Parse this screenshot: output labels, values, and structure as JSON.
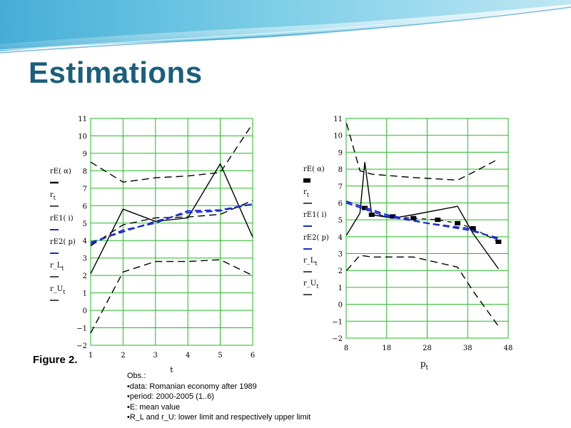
{
  "slide": {
    "title": "Estimations",
    "figure_caption": "Figure 2.",
    "notes": [
      "Obs.:",
      "•data: Romanian economy after 1989",
      "•period: 2000-2005 (1..6)",
      "•E: mean value",
      "•R_L and r_U: lower limit and respectively upper limit"
    ]
  },
  "colors": {
    "title": "#1b5e7e",
    "grid": "#22bb22",
    "black_series": "#000000",
    "blue_series": "#1a2ad0"
  },
  "chart_data": [
    {
      "type": "line",
      "xlabel": "t",
      "ylabel": "",
      "xlim": [
        1,
        6
      ],
      "ylim": [
        -2,
        11
      ],
      "xticks": [
        "1",
        "2",
        "3",
        "4",
        "5",
        "6"
      ],
      "yticks": [
        "−2",
        "−1",
        "0",
        "1",
        "2",
        "3",
        "4",
        "5",
        "6",
        "7",
        "8",
        "9",
        "10",
        "11"
      ],
      "grid": true,
      "legend": "left",
      "series": [
        {
          "name": "rE( α)",
          "style": "dashed",
          "color": "#000000",
          "x": [
            1,
            2,
            3,
            4,
            5,
            6
          ],
          "y": [
            3.7,
            4.9,
            5.3,
            5.35,
            5.5,
            6.3
          ]
        },
        {
          "name": "rt",
          "style": "solid",
          "color": "#000000",
          "x": [
            1,
            2,
            3,
            4,
            5,
            6
          ],
          "y": [
            2.1,
            5.8,
            5.1,
            5.3,
            8.4,
            4.2
          ]
        },
        {
          "name": "rE1( i)",
          "style": "dashed",
          "color": "#1a2ad0",
          "x": [
            1,
            2,
            3,
            4,
            5,
            6
          ],
          "y": [
            3.9,
            4.5,
            5.1,
            5.6,
            5.7,
            6.1
          ]
        },
        {
          "name": "rE2( p)",
          "style": "dashed",
          "color": "#1a2ad0",
          "x": [
            1,
            2,
            3,
            4,
            5,
            6
          ],
          "y": [
            3.8,
            4.6,
            5.0,
            5.7,
            5.75,
            6.1
          ]
        },
        {
          "name": "r_Lt",
          "style": "dashed",
          "color": "#000000",
          "x": [
            1,
            2,
            3,
            4,
            5,
            6
          ],
          "y": [
            -1.3,
            2.2,
            2.8,
            2.8,
            2.9,
            2.0
          ]
        },
        {
          "name": "r_Ut",
          "style": "dashed",
          "color": "#000000",
          "x": [
            1,
            2,
            3,
            4,
            5,
            6
          ],
          "y": [
            8.5,
            7.35,
            7.6,
            7.7,
            7.9,
            10.7
          ]
        }
      ]
    },
    {
      "type": "line",
      "xlabel": "pt",
      "ylabel": "",
      "xlim": [
        8,
        48
      ],
      "ylim": [
        -2,
        11
      ],
      "xticks": [
        "8",
        "18",
        "28",
        "38",
        "48"
      ],
      "yticks": [
        "−2",
        "−1",
        "0",
        "1",
        "2",
        "3",
        "4",
        "5",
        "6",
        "7",
        "8",
        "9",
        "10",
        "11"
      ],
      "grid": true,
      "legend": "left",
      "series": [
        {
          "name": "rE( α)",
          "style": "dashed-thick",
          "color": "#000000",
          "x": [
            12.6,
            14.3,
            19.5,
            24.6,
            30.6,
            35.5,
            39.3,
            45.6
          ],
          "y": [
            5.7,
            5.3,
            5.2,
            5.1,
            5.0,
            4.8,
            4.5,
            3.7
          ]
        },
        {
          "name": "rt",
          "style": "solid",
          "color": "#000000",
          "x": [
            8.1,
            11.4,
            12.6,
            14.3,
            19.5,
            24.6,
            35.5,
            39.3,
            45.6
          ],
          "y": [
            4.1,
            5.4,
            8.4,
            5.3,
            5.1,
            5.3,
            5.8,
            4.2,
            2.1
          ]
        },
        {
          "name": "rE1( i)",
          "style": "dashed",
          "color": "#1a2ad0",
          "x": [
            8,
            18,
            28,
            38,
            46
          ],
          "y": [
            6.1,
            5.3,
            4.8,
            4.4,
            3.9
          ]
        },
        {
          "name": "rE2( p)",
          "style": "dashed",
          "color": "#1a2ad0",
          "x": [
            8,
            18,
            28,
            38,
            46
          ],
          "y": [
            6.0,
            5.2,
            4.8,
            4.5,
            3.8
          ]
        },
        {
          "name": "r_Lt",
          "style": "dashed",
          "color": "#000000",
          "x": [
            8.1,
            11.4,
            14.3,
            19.5,
            24.6,
            35.5,
            39.3,
            45.6
          ],
          "y": [
            2.0,
            2.9,
            2.8,
            2.8,
            2.8,
            2.2,
            0.8,
            -1.3
          ]
        },
        {
          "name": "r_Ut",
          "style": "dashed",
          "color": "#000000",
          "x": [
            8.1,
            11.4,
            14.3,
            19.5,
            24.6,
            35.5,
            39.3,
            45.6
          ],
          "y": [
            10.7,
            7.9,
            7.7,
            7.6,
            7.5,
            7.35,
            7.8,
            8.6
          ]
        }
      ]
    }
  ]
}
